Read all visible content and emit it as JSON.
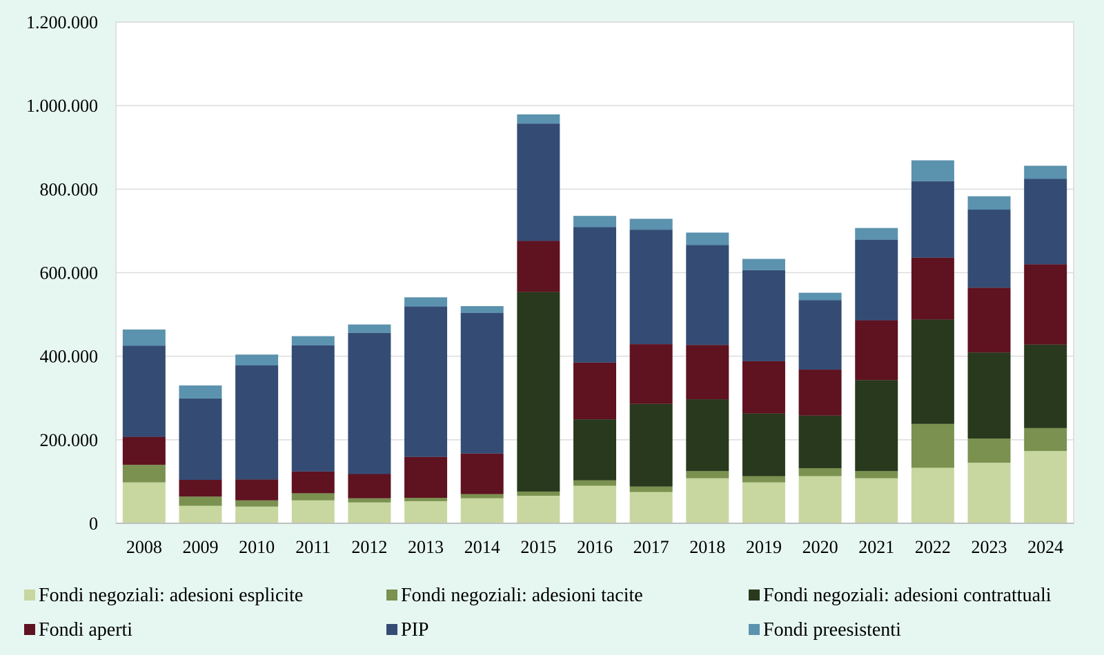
{
  "chart_data": {
    "type": "bar",
    "stacked": true,
    "grid": true,
    "legend_position": "bottom",
    "ylim": [
      0,
      1200000
    ],
    "ytick_values": [
      0,
      200000,
      400000,
      600000,
      800000,
      1000000,
      1200000
    ],
    "ytick_labels": [
      "0",
      "200.000",
      "400.000",
      "600.000",
      "800.000",
      "1.000.000",
      "1.200.000"
    ],
    "categories": [
      "2008",
      "2009",
      "2010",
      "2011",
      "2012",
      "2013",
      "2014",
      "2015",
      "2016",
      "2017",
      "2018",
      "2019",
      "2020",
      "2021",
      "2022",
      "2023",
      "2024"
    ],
    "series": [
      {
        "name": "Fondi negoziali: adesioni esplicite",
        "color": "#c8d7a0",
        "values": [
          98000,
          42000,
          40000,
          55000,
          50000,
          53000,
          60000,
          66000,
          90000,
          75000,
          108000,
          98000,
          113000,
          108000,
          133000,
          145000,
          173000
        ]
      },
      {
        "name": "Fondi negoziali: adesioni tacite",
        "color": "#7a9150",
        "values": [
          42000,
          22000,
          15000,
          17000,
          10000,
          8000,
          10000,
          10000,
          13000,
          13000,
          17000,
          15000,
          19000,
          17000,
          105000,
          58000,
          55000
        ]
      },
      {
        "name": "Fondi negoziali: adesioni contrattuali",
        "color": "#29391d",
        "values": [
          0,
          0,
          0,
          0,
          0,
          0,
          0,
          478000,
          146000,
          198000,
          172000,
          150000,
          126000,
          218000,
          250000,
          206000,
          200000
        ]
      },
      {
        "name": "Fondi aperti",
        "color": "#5f1220",
        "values": [
          67000,
          40000,
          50000,
          52000,
          58000,
          98000,
          97000,
          122000,
          136000,
          143000,
          130000,
          125000,
          110000,
          143000,
          148000,
          155000,
          192000
        ]
      },
      {
        "name": "PIP",
        "color": "#344c74",
        "values": [
          218000,
          195000,
          273000,
          302000,
          338000,
          360000,
          337000,
          281000,
          324000,
          274000,
          239000,
          218000,
          166000,
          193000,
          183000,
          187000,
          205000
        ]
      },
      {
        "name": "Fondi preesistenti",
        "color": "#5b92ae",
        "values": [
          39000,
          31000,
          26000,
          22000,
          20000,
          22000,
          16000,
          22000,
          27000,
          26000,
          30000,
          27000,
          18000,
          28000,
          50000,
          32000,
          31000
        ]
      }
    ]
  }
}
